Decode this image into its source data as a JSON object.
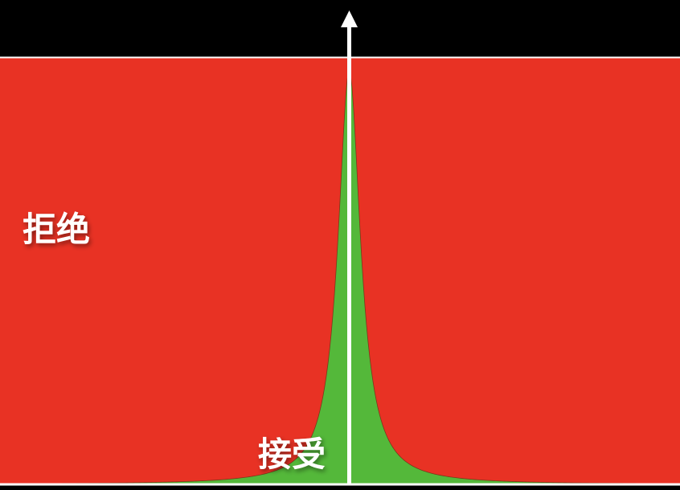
{
  "labels": {
    "reject": "拒绝",
    "accept": "接受"
  },
  "colors": {
    "background": "#000000",
    "reject_region": "#e83224",
    "accept_region": "#54b83a",
    "lines": "#ffffff"
  }
}
